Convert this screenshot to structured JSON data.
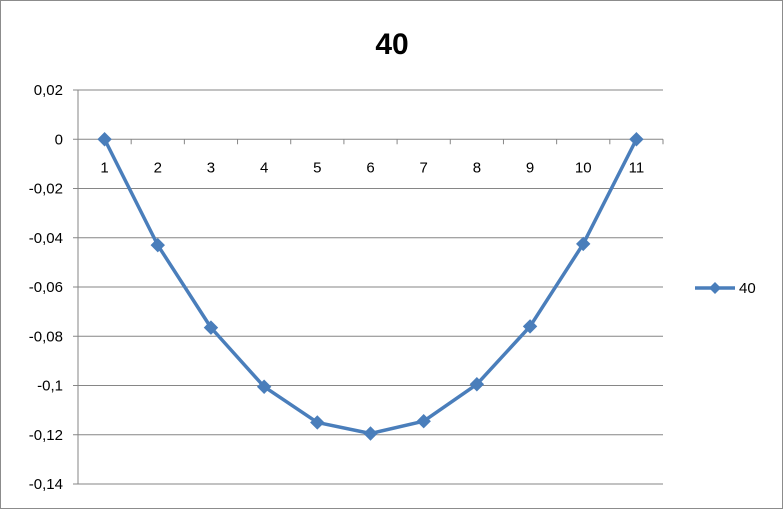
{
  "chart_data": {
    "type": "line",
    "title": "40",
    "xlabel": "",
    "ylabel": "",
    "categories": [
      "1",
      "2",
      "3",
      "4",
      "5",
      "6",
      "7",
      "8",
      "9",
      "10",
      "11"
    ],
    "series": [
      {
        "name": "40",
        "values": [
          0,
          -0.043,
          -0.0765,
          -0.1005,
          -0.115,
          -0.1195,
          -0.1145,
          -0.0995,
          -0.076,
          -0.0425,
          0
        ],
        "color": "#4a7ebb",
        "marker": "diamond"
      }
    ],
    "ylim": [
      -0.14,
      0.02
    ],
    "yticks": [
      0.02,
      0,
      -0.02,
      -0.04,
      -0.06,
      -0.08,
      -0.1,
      -0.12,
      -0.14
    ],
    "ytick_labels": [
      "0,02",
      "0",
      "-0,02",
      "-0,04",
      "-0,06",
      "-0,08",
      "-0,1",
      "-0,12",
      "-0,14"
    ],
    "x_tick_position": "along zero line",
    "grid": true,
    "legend": "right"
  }
}
